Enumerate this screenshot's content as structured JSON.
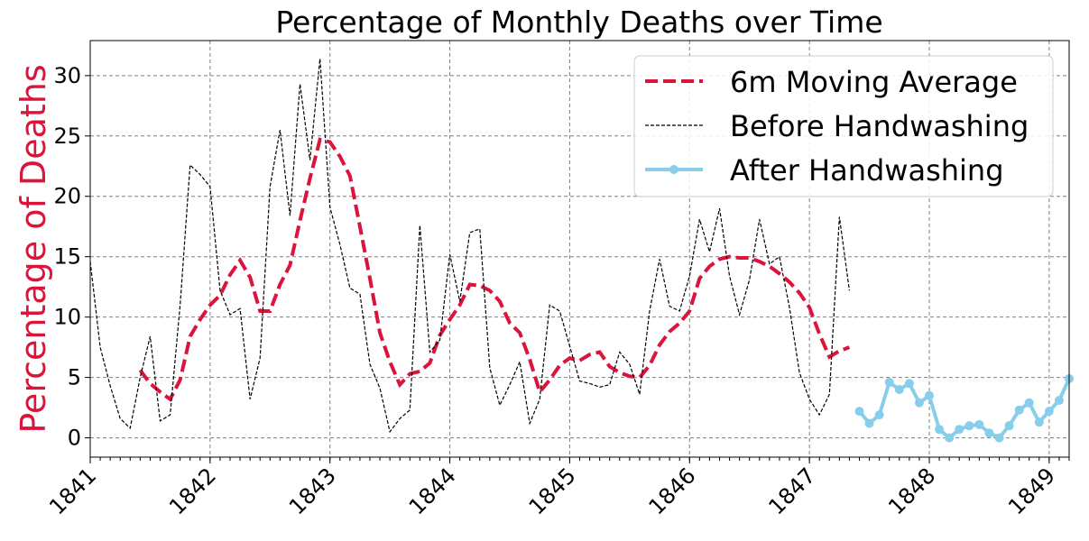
{
  "chart_data": {
    "type": "line",
    "title": "Percentage of Monthly Deaths over Time",
    "y_label": "Percentage of Deaths",
    "xlim": [
      "1841",
      "1849-03"
    ],
    "xticks": [
      "1841",
      "1842",
      "1843",
      "1844",
      "1845",
      "1846",
      "1847",
      "1848",
      "1849"
    ],
    "ylim": [
      -1.6,
      32.9
    ],
    "yticks": [
      0,
      5,
      10,
      15,
      20,
      25,
      30
    ],
    "grid": true,
    "legend": "upper right",
    "series": [
      {
        "name": "6m Moving Average",
        "color": "#dc143c",
        "style": "dashed",
        "x": [
          "1841-06",
          "1841-07",
          "1841-08",
          "1841-09",
          "1841-10",
          "1841-11",
          "1841-12",
          "1842-01",
          "1842-02",
          "1842-03",
          "1842-04",
          "1842-05",
          "1842-06",
          "1842-07",
          "1842-08",
          "1842-09",
          "1842-10",
          "1842-11",
          "1842-12",
          "1843-01",
          "1843-02",
          "1843-03",
          "1843-04",
          "1843-05",
          "1843-06",
          "1843-07",
          "1843-08",
          "1843-09",
          "1843-10",
          "1843-11",
          "1843-12",
          "1844-01",
          "1844-02",
          "1844-03",
          "1844-04",
          "1844-05",
          "1844-06",
          "1844-07",
          "1844-08",
          "1844-09",
          "1844-10",
          "1844-11",
          "1844-12",
          "1845-01",
          "1845-02",
          "1845-03",
          "1845-04",
          "1845-05",
          "1845-06",
          "1845-07",
          "1845-08",
          "1845-09",
          "1845-10",
          "1845-11",
          "1845-12",
          "1846-01",
          "1846-02",
          "1846-03",
          "1846-04",
          "1846-05",
          "1846-06",
          "1846-07",
          "1846-08",
          "1846-09",
          "1846-10",
          "1846-11",
          "1846-12",
          "1847-01",
          "1847-02",
          "1847-03",
          "1847-04",
          "1847-05"
        ],
        "values": [
          5.6,
          4.5,
          3.8,
          3.2,
          4.8,
          8.4,
          9.8,
          11.0,
          11.8,
          13.5,
          14.7,
          13.3,
          10.5,
          10.5,
          12.7,
          14.3,
          18.0,
          21.5,
          24.7,
          24.5,
          23.3,
          21.7,
          17.5,
          13.2,
          8.7,
          6.3,
          4.4,
          5.3,
          5.5,
          6.2,
          8.5,
          9.8,
          11.0,
          12.7,
          12.6,
          12.2,
          11.3,
          9.5,
          8.7,
          6.5,
          3.8,
          4.8,
          6.0,
          6.6,
          6.4,
          6.9,
          7.1,
          5.9,
          5.4,
          5.1,
          5.0,
          6.0,
          7.7,
          8.8,
          9.5,
          10.5,
          13.2,
          14.2,
          14.8,
          15.0,
          14.9,
          14.9,
          14.6,
          14.2,
          13.6,
          12.9,
          12.0,
          10.8,
          8.6,
          6.7,
          7.2,
          7.5
        ]
      },
      {
        "name": "Before Handwashing",
        "color": "#000000",
        "style": "dashed-thin",
        "x": [
          "1841-01",
          "1841-02",
          "1841-03",
          "1841-04",
          "1841-05",
          "1841-06",
          "1841-07",
          "1841-08",
          "1841-09",
          "1841-10",
          "1841-11",
          "1841-12",
          "1842-01",
          "1842-02",
          "1842-03",
          "1842-04",
          "1842-05",
          "1842-06",
          "1842-07",
          "1842-08",
          "1842-09",
          "1842-10",
          "1842-11",
          "1842-12",
          "1843-01",
          "1843-02",
          "1843-03",
          "1843-04",
          "1843-05",
          "1843-06",
          "1843-07",
          "1843-08",
          "1843-09",
          "1843-10",
          "1843-11",
          "1843-12",
          "1844-01",
          "1844-02",
          "1844-03",
          "1844-04",
          "1844-05",
          "1844-06",
          "1844-07",
          "1844-08",
          "1844-09",
          "1844-10",
          "1844-11",
          "1844-12",
          "1845-01",
          "1845-02",
          "1845-03",
          "1845-04",
          "1845-05",
          "1845-06",
          "1845-07",
          "1845-08",
          "1845-09",
          "1845-10",
          "1845-11",
          "1845-12",
          "1846-01",
          "1846-02",
          "1846-03",
          "1846-04",
          "1846-05",
          "1846-06",
          "1846-07",
          "1846-08",
          "1846-09",
          "1846-10",
          "1846-11",
          "1846-12",
          "1847-01",
          "1847-02",
          "1847-03",
          "1847-04",
          "1847-05"
        ],
        "values": [
          14.6,
          7.5,
          4.3,
          1.6,
          0.8,
          5.0,
          8.4,
          1.4,
          1.9,
          11.0,
          22.6,
          21.8,
          20.8,
          12.2,
          10.2,
          10.7,
          3.2,
          6.6,
          20.8,
          25.5,
          18.4,
          29.3,
          23.0,
          31.4,
          19.1,
          16.0,
          12.4,
          11.9,
          6.1,
          4.1,
          0.5,
          1.6,
          2.3,
          17.6,
          7.1,
          8.1,
          15.2,
          11.3,
          17.0,
          17.3,
          5.8,
          2.7,
          4.4,
          6.3,
          1.2,
          3.2,
          11.0,
          10.5,
          7.6,
          4.7,
          4.5,
          4.2,
          4.4,
          7.1,
          6.1,
          3.6,
          10.5,
          14.8,
          10.9,
          10.5,
          13.4,
          18.1,
          15.4,
          19.0,
          13.4,
          10.2,
          13.1,
          18.1,
          14.4,
          15.0,
          10.8,
          5.4,
          3.2,
          1.9,
          3.6,
          18.3,
          12.2
        ]
      },
      {
        "name": "After Handwashing",
        "color": "#87ceeb",
        "style": "solid-marker",
        "x": [
          "1847-06",
          "1847-07",
          "1847-08",
          "1847-09",
          "1847-10",
          "1847-11",
          "1847-12",
          "1848-01",
          "1848-02",
          "1848-03",
          "1848-04",
          "1848-05",
          "1848-06",
          "1848-07",
          "1848-08",
          "1848-09",
          "1848-10",
          "1848-11",
          "1848-12",
          "1849-01",
          "1849-02",
          "1849-03"
        ],
        "values": [
          2.2,
          1.2,
          1.9,
          4.6,
          4.0,
          4.5,
          2.9,
          3.5,
          0.7,
          0,
          0.7,
          1.0,
          1.1,
          0.4,
          0,
          1.0,
          2.3,
          2.9,
          1.3,
          2.2,
          3.1,
          4.9
        ]
      }
    ]
  }
}
